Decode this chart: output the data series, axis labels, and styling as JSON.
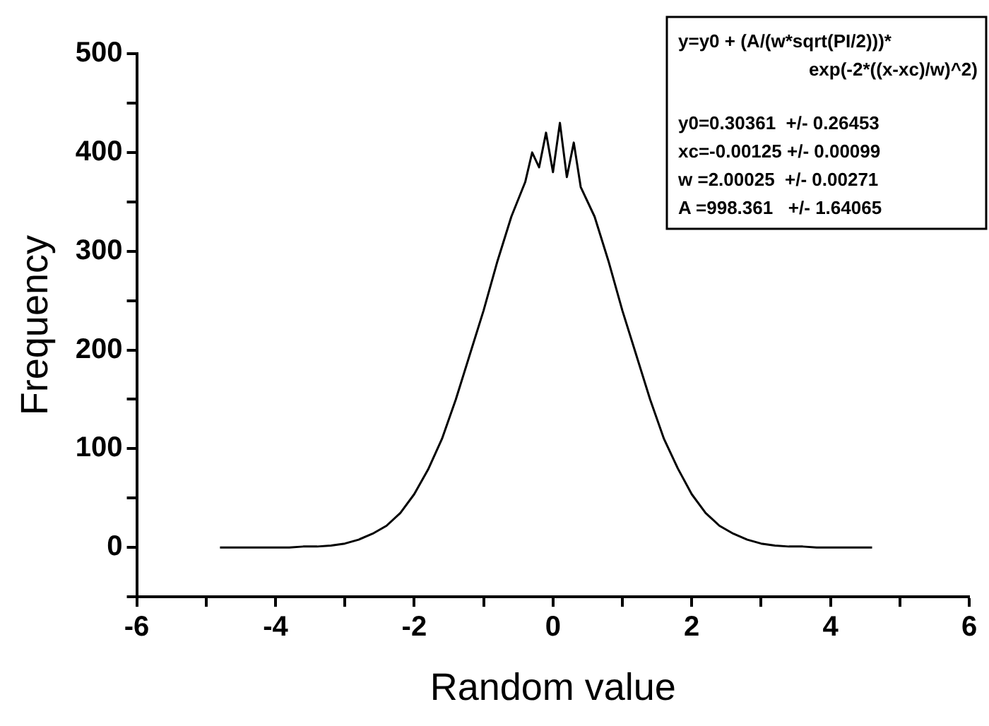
{
  "chart_data": {
    "type": "line",
    "xlabel": "Random value",
    "ylabel": "Frequency",
    "x": [
      -4.8,
      -4.6,
      -4.4,
      -4.2,
      -4.0,
      -3.8,
      -3.6,
      -3.4,
      -3.2,
      -3.0,
      -2.8,
      -2.6,
      -2.4,
      -2.2,
      -2.0,
      -1.8,
      -1.6,
      -1.4,
      -1.2,
      -1.0,
      -0.8,
      -0.6,
      -0.4,
      -0.3,
      -0.2,
      -0.1,
      0,
      0.1,
      0.2,
      0.3,
      0.4,
      0.6,
      0.8,
      1.0,
      1.2,
      1.4,
      1.6,
      1.8,
      2.0,
      2.2,
      2.4,
      2.6,
      2.8,
      3.0,
      3.2,
      3.4,
      3.6,
      3.8,
      4.0,
      4.2,
      4.4,
      4.6
    ],
    "series": [
      {
        "color": "#000000",
        "values": [
          0,
          0,
          0,
          0,
          0,
          0,
          1,
          1,
          2,
          4,
          8,
          14,
          22,
          35,
          54,
          79,
          110,
          150,
          195,
          240,
          290,
          335,
          370,
          400,
          385,
          420,
          380,
          430,
          375,
          410,
          365,
          335,
          290,
          240,
          195,
          150,
          110,
          80,
          54,
          35,
          22,
          14,
          8,
          4,
          2,
          1,
          1,
          0,
          0,
          0,
          0,
          0
        ]
      }
    ],
    "xlim": [
      -6,
      6
    ],
    "xticks": [
      -6,
      {
        "value": -5,
        "label": null
      },
      -4,
      {
        "value": -3,
        "label": null
      },
      -2,
      {
        "value": -1,
        "label": null
      },
      0,
      {
        "value": 1,
        "label": null
      },
      2,
      {
        "value": 3,
        "label": null
      },
      4,
      {
        "value": 5,
        "label": null
      },
      6
    ],
    "ylim": [
      -50,
      500
    ],
    "yticks": [
      {
        "value": -50,
        "label": null
      },
      0,
      {
        "value": 50,
        "label": null
      },
      100,
      {
        "value": 150,
        "label": null
      },
      200,
      {
        "value": 250,
        "label": null
      },
      300,
      {
        "value": 350,
        "label": null
      },
      400,
      {
        "value": 450,
        "label": null
      },
      500
    ],
    "grid": false,
    "marker": "none",
    "line_style": "solid",
    "annotations": [
      "y=y0 + (A/(w*sqrt(PI/2)))*",
      "exp(-2*((x-xc)/w)^2)",
      "y0=0.30361  +/- 0.26453",
      "xc=-0.00125 +/- 0.00099",
      "w =2.00025  +/- 0.00271",
      "A =998.361   +/- 1.64065"
    ]
  }
}
